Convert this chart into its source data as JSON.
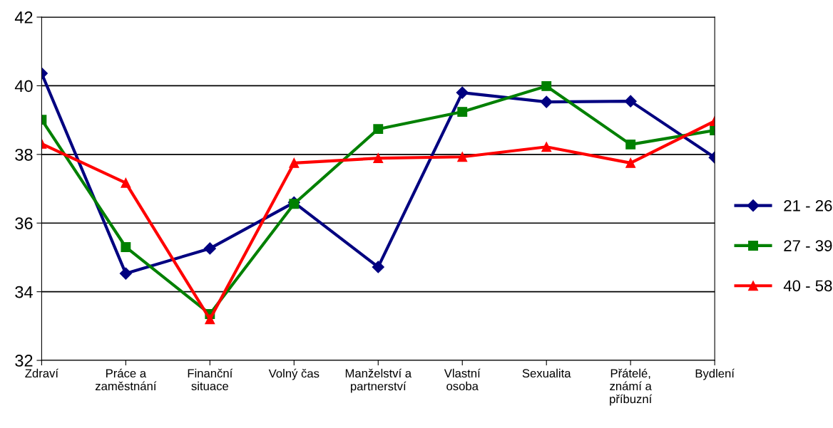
{
  "chart_data": {
    "type": "line",
    "categories": [
      "Zdraví",
      "Práce a\nzaměstnání",
      "Finanční\nsituace",
      "Volný čas",
      "Manželství a\npartnerství",
      "Vlastní\nosoba",
      "Sexualita",
      "Přátelé,\nznámí a\npříbuzní",
      "Bydlení"
    ],
    "series": [
      {
        "name": "21 - 26",
        "color": "#000080",
        "marker": "diamond",
        "values": [
          40.36,
          34.53,
          35.26,
          36.6,
          34.72,
          39.8,
          39.53,
          39.55,
          37.91
        ]
      },
      {
        "name": "27 - 39",
        "color": "#008000",
        "marker": "square",
        "values": [
          39.01,
          35.3,
          33.35,
          36.56,
          38.74,
          39.24,
          39.99,
          38.29,
          38.7
        ]
      },
      {
        "name": "40 - 58",
        "color": "#ff0000",
        "marker": "triangle",
        "values": [
          38.31,
          37.17,
          33.2,
          37.75,
          37.89,
          37.93,
          38.22,
          37.75,
          38.97
        ]
      }
    ],
    "ylim": [
      32,
      42
    ],
    "yticks": [
      32,
      34,
      36,
      38,
      40,
      42
    ],
    "grid": "y",
    "legend": "right",
    "line_style": "solid"
  }
}
